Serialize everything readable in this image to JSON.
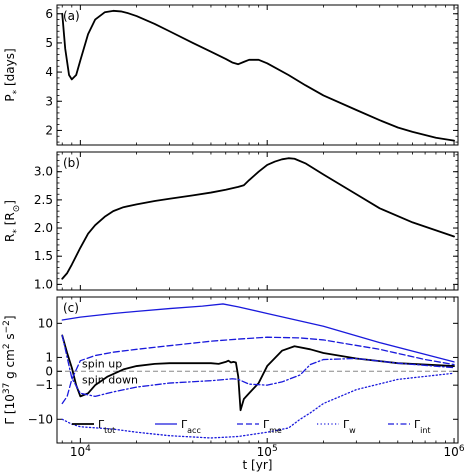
{
  "chart_data": [
    {
      "panel_label": "(a)",
      "type": "line",
      "xscale": "log",
      "xlim": [
        7500,
        1050000
      ],
      "ylim": [
        1.5,
        6.3
      ],
      "ylabel": "P",
      "ylabel_sub": "*",
      "ylabel_unit": " [days]",
      "yticks": [
        2,
        3,
        4,
        5,
        6
      ],
      "series": [
        {
          "color": "#000000",
          "dash": "solid",
          "x": [
            8000,
            8300,
            8700,
            9000,
            9500,
            10000,
            11000,
            12000,
            13500,
            15000,
            16500,
            18000,
            20000,
            25000,
            30000,
            40000,
            50000,
            60000,
            65000,
            70000,
            75000,
            80000,
            90000,
            100000,
            130000,
            160000,
            200000,
            300000,
            400000,
            500000,
            600000,
            800000,
            1000000
          ],
          "y": [
            6.0,
            4.8,
            3.9,
            3.75,
            3.9,
            4.4,
            5.3,
            5.8,
            6.05,
            6.1,
            6.08,
            6.02,
            5.92,
            5.65,
            5.4,
            5.0,
            4.7,
            4.45,
            4.33,
            4.27,
            4.35,
            4.42,
            4.42,
            4.3,
            3.9,
            3.55,
            3.2,
            2.7,
            2.35,
            2.1,
            1.95,
            1.75,
            1.65
          ]
        }
      ]
    },
    {
      "panel_label": "(b)",
      "type": "line",
      "xscale": "log",
      "xlim": [
        7500,
        1050000
      ],
      "ylim": [
        0.9,
        3.35
      ],
      "ylabel": "R",
      "ylabel_sub": "*",
      "ylabel_unit": " [R",
      "ylabel_unit_sub": "⊙",
      "ylabel_close": "]",
      "yticks": [
        1.0,
        1.5,
        2.0,
        2.5,
        3.0
      ],
      "yticklabels": [
        "1.0",
        "1.5",
        "2.0",
        "2.5",
        "3.0"
      ],
      "series": [
        {
          "color": "#000000",
          "dash": "solid",
          "x": [
            8000,
            8500,
            9000,
            10000,
            11000,
            12000,
            13500,
            15000,
            17000,
            20000,
            25000,
            30000,
            40000,
            50000,
            60000,
            70000,
            75000,
            80000,
            90000,
            100000,
            110000,
            120000,
            130000,
            140000,
            160000,
            200000,
            300000,
            400000,
            600000,
            1000000
          ],
          "y": [
            1.1,
            1.2,
            1.35,
            1.65,
            1.9,
            2.05,
            2.2,
            2.3,
            2.37,
            2.42,
            2.48,
            2.52,
            2.58,
            2.63,
            2.68,
            2.73,
            2.76,
            2.85,
            3.0,
            3.12,
            3.18,
            3.22,
            3.24,
            3.23,
            3.15,
            2.95,
            2.6,
            2.35,
            2.1,
            1.85
          ]
        }
      ]
    },
    {
      "panel_label": "(c)",
      "type": "line",
      "xscale": "log",
      "yscale": "symlog",
      "symlog_linthresh": 1,
      "xlim": [
        7500,
        1050000
      ],
      "ylim": [
        -35,
        40
      ],
      "xlabel": "t [yr]",
      "ylabel": "Γ [10",
      "ylabel_exp": "37",
      "ylabel_mid": " g cm",
      "ylabel_exp2": "2",
      "ylabel_mid2": " s",
      "ylabel_exp3": "−2",
      "ylabel_close": "]",
      "yticks": [
        -10,
        -1,
        0,
        1,
        10
      ],
      "yticklabels": [
        "−10",
        "−1",
        "0",
        "1",
        "10"
      ],
      "xticks": [
        10000,
        100000,
        1000000
      ],
      "xticklabels_base": [
        "10",
        "10",
        "10"
      ],
      "xticklabels_exp": [
        "4",
        "5",
        "6"
      ],
      "hline": 0,
      "annotations": [
        "spin up",
        "spin down"
      ],
      "series": [
        {
          "name": "Γ",
          "name_sub": "tot",
          "color": "#000000",
          "dash": "solid",
          "x": [
            8000,
            8500,
            9000,
            9500,
            10000,
            11000,
            12000,
            14000,
            17000,
            20000,
            25000,
            30000,
            40000,
            50000,
            55000,
            60000,
            62000,
            64000,
            66000,
            68000,
            70000,
            72000,
            75000,
            80000,
            90000,
            100000,
            120000,
            140000,
            170000,
            200000,
            300000,
            500000,
            1000000
          ],
          "y": [
            5.0,
            1.5,
            0.2,
            -1.0,
            -2.5,
            -2.0,
            -1.0,
            -0.3,
            0.1,
            0.3,
            0.45,
            0.5,
            0.5,
            0.5,
            0.45,
            0.6,
            0.7,
            0.55,
            0.6,
            0.55,
            -0.3,
            -6.0,
            -3.0,
            -2.0,
            -0.8,
            0.3,
            1.8,
            2.5,
            2.0,
            1.5,
            0.9,
            0.5,
            0.3
          ]
        },
        {
          "name": "Γ",
          "name_sub": "acc",
          "color": "#1a1adc",
          "dash": "solid",
          "x": [
            8000,
            10000,
            15000,
            20000,
            30000,
            45000,
            58000,
            70000,
            100000,
            200000,
            400000,
            1000000
          ],
          "y": [
            12.0,
            14.0,
            17.0,
            19.0,
            22.0,
            25.0,
            28.0,
            24.0,
            17.0,
            8.5,
            3.2,
            0.6
          ]
        },
        {
          "name": "Γ",
          "name_sub": "me",
          "color": "#1a1adc",
          "dash": "dashed",
          "x": [
            8000,
            8500,
            9000,
            10000,
            12000,
            15000,
            20000,
            30000,
            50000,
            70000,
            100000,
            150000,
            200000,
            400000,
            700000,
            1000000
          ],
          "y": [
            -4.0,
            -2.5,
            -0.5,
            0.7,
            1.2,
            1.6,
            2.0,
            2.6,
            3.5,
            4.0,
            4.5,
            4.3,
            3.8,
            2.0,
            0.8,
            0.4
          ]
        },
        {
          "name": "Γ",
          "name_sub": "w",
          "color": "#1a1adc",
          "dash": "dotted",
          "x": [
            8000,
            9000,
            10000,
            15000,
            20000,
            30000,
            50000,
            70000,
            100000,
            130000,
            150000,
            170000,
            200000,
            300000,
            500000,
            1000000
          ],
          "y": [
            -10.0,
            -13.0,
            -15.0,
            -17.0,
            -20.0,
            -24.0,
            -27.0,
            -25.0,
            -20.0,
            -16.0,
            -10.0,
            -7.0,
            -4.0,
            -1.5,
            -0.5,
            -0.1
          ]
        },
        {
          "name": "Γ",
          "name_sub": "int",
          "color": "#1a1adc",
          "dash": "dashdot",
          "x": [
            8000,
            8500,
            9000,
            10000,
            12000,
            15000,
            20000,
            30000,
            50000,
            60000,
            65000,
            70000,
            80000,
            100000,
            120000,
            150000,
            170000,
            200000,
            300000,
            500000,
            1000000
          ],
          "y": [
            5.0,
            1.0,
            -0.4,
            -2.0,
            -2.5,
            -1.8,
            -1.2,
            -0.8,
            -0.6,
            -0.5,
            -0.45,
            -0.5,
            -0.9,
            -1.0,
            -0.7,
            -0.2,
            0.4,
            0.8,
            0.9,
            0.5,
            0.2
          ]
        }
      ]
    }
  ]
}
